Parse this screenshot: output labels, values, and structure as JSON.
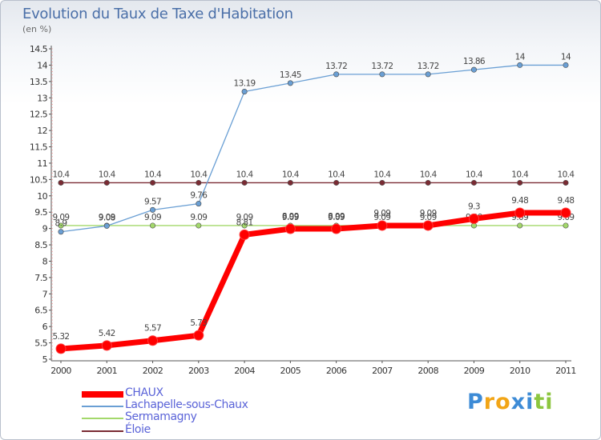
{
  "chart_data": {
    "type": "line",
    "title": "Evolution du Taux de Taxe d'Habitation",
    "subtitle": "(en %)",
    "xlabel": "",
    "ylabel": "",
    "categories": [
      "2000",
      "2001",
      "2002",
      "2003",
      "2004",
      "2005",
      "2006",
      "2007",
      "2008",
      "2009",
      "2010",
      "2011"
    ],
    "ylim": [
      5,
      14.5
    ],
    "yticks": [
      "5",
      "5.5",
      "6",
      "6.5",
      "7",
      "7.5",
      "8",
      "8.5",
      "9",
      "9.5",
      "10",
      "10.5",
      "11",
      "11.5",
      "12",
      "12.5",
      "13",
      "13.5",
      "14",
      "14.5"
    ],
    "grid": false,
    "legend_position": "bottom-left",
    "series": [
      {
        "name": "CHAUX",
        "color": "#ff0000",
        "values": [
          5.32,
          5.42,
          5.57,
          5.73,
          8.81,
          8.99,
          8.99,
          9.09,
          9.09,
          9.3,
          9.48,
          9.48
        ]
      },
      {
        "name": "Lachapelle-sous-Chaux",
        "color": "#6a9fd4",
        "values": [
          8.9,
          9.08,
          9.57,
          9.76,
          13.19,
          13.45,
          13.72,
          13.72,
          13.72,
          13.86,
          14,
          14
        ]
      },
      {
        "name": "Sermamagny",
        "color": "#a3d86b",
        "values": [
          9.09,
          9.09,
          9.09,
          9.09,
          9.09,
          9.09,
          9.09,
          9.09,
          9.09,
          9.09,
          9.09,
          9.09
        ]
      },
      {
        "name": "Éloie",
        "color": "#7a2b33",
        "values": [
          10.4,
          10.4,
          10.4,
          10.4,
          10.4,
          10.4,
          10.4,
          10.4,
          10.4,
          10.4,
          10.4,
          10.4
        ]
      }
    ]
  },
  "legend": {
    "items": [
      "CHAUX",
      "Lachapelle-sous-Chaux",
      "Sermamagny",
      "Éloie"
    ]
  },
  "brand": {
    "logo_text": "ProXiti",
    "logo_letters": [
      "P",
      "r",
      "o",
      "x",
      "i",
      "t",
      "i"
    ],
    "logo_colors": [
      "#3d8bd6",
      "#f2a516",
      "#f2a516",
      "#3d8bd6",
      "#3d8bd6",
      "#8cc63f",
      "#8cc63f"
    ]
  }
}
